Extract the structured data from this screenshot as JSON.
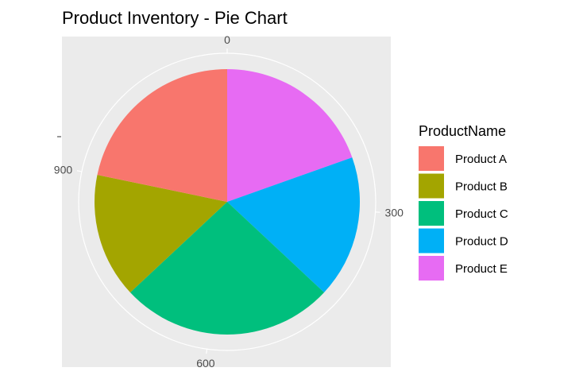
{
  "chart_data": {
    "type": "pie",
    "title": "Product Inventory - Pie Chart",
    "legend_title": "ProductName",
    "legend_position": "right",
    "categories": [
      "Product A",
      "Product B",
      "Product C",
      "Product D",
      "Product E"
    ],
    "values": [
      250,
      175,
      300,
      200,
      225
    ],
    "colors": [
      "#F8766D",
      "#A3A500",
      "#00BF7D",
      "#00B0F6",
      "#E76BF3"
    ],
    "theta_ticks": [
      0,
      300,
      600,
      900
    ],
    "theta_tick_labels": [
      "0",
      "300",
      "600",
      "900"
    ],
    "background": "#EBEBEB",
    "grid": true
  }
}
